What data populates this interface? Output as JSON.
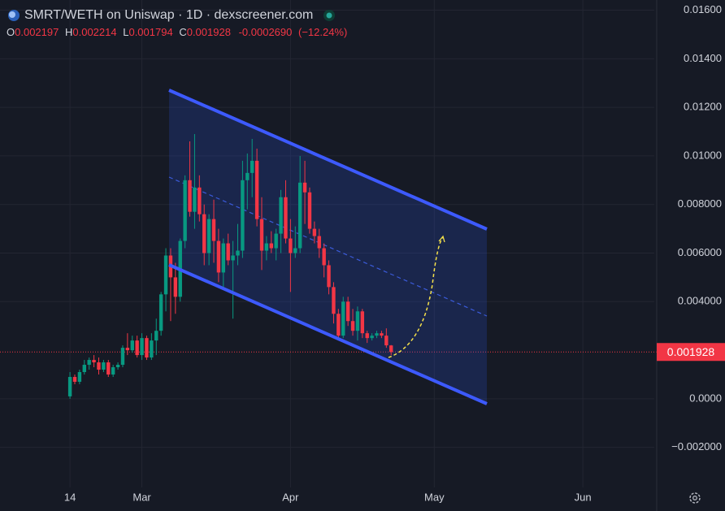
{
  "chart_data": {
    "type": "candlestick",
    "title": "SMRT/WETH on Uniswap · 1D · dexscreener.com",
    "header": {
      "o": "O",
      "h": "H",
      "l": "L",
      "c": "C",
      "change_label": "-0.0002690",
      "change_pct_label": "(−12.24%)"
    },
    "x": [
      0,
      1,
      2,
      3,
      4,
      5,
      6,
      7,
      8,
      9,
      10,
      11,
      12,
      13,
      14,
      15,
      16,
      17,
      18,
      19,
      20,
      21,
      22,
      23,
      24,
      25,
      26,
      27,
      28,
      29,
      30,
      31,
      32,
      33,
      34,
      35,
      36,
      37,
      38,
      39,
      40,
      41,
      42,
      43,
      44,
      45,
      46,
      47,
      48,
      49,
      50,
      51,
      52,
      53,
      54,
      55,
      56,
      57,
      58,
      59,
      60,
      61,
      62,
      63,
      64,
      65,
      66,
      67
    ],
    "open": [
      0.0001,
      0.0009,
      0.0007,
      0.0011,
      0.0014,
      0.0016,
      0.0015,
      0.0012,
      0.0015,
      0.001,
      0.0013,
      0.0014,
      0.0021,
      0.002,
      0.0024,
      0.0018,
      0.0025,
      0.0017,
      0.0024,
      0.0028,
      0.0043,
      0.0059,
      0.005,
      0.0042,
      0.0065,
      0.009,
      0.0077,
      0.0087,
      0.0076,
      0.006,
      0.0074,
      0.0065,
      0.0052,
      0.0064,
      0.0057,
      0.0059,
      0.0061,
      0.009,
      0.0093,
      0.0098,
      0.0074,
      0.0061,
      0.0064,
      0.0062,
      0.0068,
      0.0083,
      0.0066,
      0.006,
      0.0062,
      0.0089,
      0.0085,
      0.007,
      0.0067,
      0.0062,
      0.0055,
      0.0046,
      0.0035,
      0.0026,
      0.004,
      0.0032,
      0.0028,
      0.0036,
      0.0027,
      0.0025,
      0.0026,
      0.0027,
      0.0026,
      0.002197
    ],
    "high": [
      0.0011,
      0.001,
      0.0012,
      0.0016,
      0.0017,
      0.0018,
      0.0017,
      0.0016,
      0.0016,
      0.0014,
      0.0015,
      0.0022,
      0.0027,
      0.0026,
      0.0026,
      0.0027,
      0.0026,
      0.0027,
      0.0033,
      0.0044,
      0.0062,
      0.0062,
      0.0056,
      0.0066,
      0.0092,
      0.0106,
      0.0109,
      0.0092,
      0.008,
      0.0076,
      0.0082,
      0.007,
      0.0066,
      0.0068,
      0.0065,
      0.0072,
      0.0098,
      0.0101,
      0.0107,
      0.0103,
      0.0083,
      0.0067,
      0.0069,
      0.007,
      0.0086,
      0.009,
      0.0074,
      0.0071,
      0.01,
      0.0098,
      0.0087,
      0.0073,
      0.007,
      0.0064,
      0.0057,
      0.0048,
      0.0037,
      0.0042,
      0.0042,
      0.0037,
      0.0038,
      0.0037,
      0.0028,
      0.0027,
      0.0028,
      0.0028,
      0.0029,
      0.002214
    ],
    "low": [
      0.0,
      0.0006,
      0.0006,
      0.001,
      0.0012,
      0.0013,
      0.001,
      0.0011,
      0.0009,
      0.0009,
      0.0012,
      0.0013,
      0.0018,
      0.0019,
      0.0017,
      0.0016,
      0.0016,
      0.0016,
      0.0018,
      0.0026,
      0.0036,
      0.0032,
      0.0035,
      0.004,
      0.0062,
      0.0075,
      0.007,
      0.0073,
      0.0055,
      0.0055,
      0.0056,
      0.0048,
      0.0046,
      0.0055,
      0.0033,
      0.0055,
      0.0058,
      0.0078,
      0.0083,
      0.0071,
      0.0053,
      0.0057,
      0.006,
      0.0057,
      0.006,
      0.0064,
      0.0044,
      0.0058,
      0.006,
      0.0072,
      0.0068,
      0.0064,
      0.0058,
      0.005,
      0.0043,
      0.0031,
      0.0024,
      0.0025,
      0.003,
      0.0026,
      0.0024,
      0.0025,
      0.0023,
      0.0024,
      0.0025,
      0.0025,
      0.0021,
      0.001794
    ],
    "close": [
      0.0009,
      0.0007,
      0.0011,
      0.0014,
      0.0016,
      0.0015,
      0.0012,
      0.0015,
      0.001,
      0.0013,
      0.0014,
      0.0021,
      0.002,
      0.0024,
      0.0018,
      0.0025,
      0.0017,
      0.0024,
      0.0028,
      0.0043,
      0.0059,
      0.005,
      0.0042,
      0.0065,
      0.009,
      0.0077,
      0.0087,
      0.0076,
      0.006,
      0.0074,
      0.0065,
      0.0052,
      0.0064,
      0.0057,
      0.0059,
      0.0061,
      0.009,
      0.0093,
      0.0098,
      0.0074,
      0.0061,
      0.0064,
      0.0062,
      0.0068,
      0.0083,
      0.0066,
      0.006,
      0.0062,
      0.0089,
      0.0085,
      0.007,
      0.0067,
      0.0062,
      0.0055,
      0.0046,
      0.0035,
      0.0026,
      0.004,
      0.0032,
      0.0028,
      0.0036,
      0.0027,
      0.0025,
      0.0026,
      0.0027,
      0.0026,
      0.0022,
      0.001928
    ],
    "up_color": "#089981",
    "down_color": "#f23645",
    "xlim": [
      -14.6,
      121.9
    ],
    "xticks": [
      {
        "value": 0,
        "label": "14"
      },
      {
        "value": 15,
        "label": "Mar"
      },
      {
        "value": 46,
        "label": "Apr"
      },
      {
        "value": 76,
        "label": "May"
      },
      {
        "value": 107,
        "label": "Jun"
      }
    ],
    "ylim": [
      -0.00365,
      0.01642
    ],
    "yticks": [
      {
        "value": 0.016,
        "label": "0.01600"
      },
      {
        "value": 0.014,
        "label": "0.01400"
      },
      {
        "value": 0.012,
        "label": "0.01200"
      },
      {
        "value": 0.01,
        "label": "0.01000"
      },
      {
        "value": 0.008,
        "label": "0.008000"
      },
      {
        "value": 0.006,
        "label": "0.006000"
      },
      {
        "value": 0.004,
        "label": "0.004000"
      },
      {
        "value": 0,
        "label": "0.0000"
      },
      {
        "value": -0.002,
        "label": "−0.002000"
      }
    ],
    "grid": true
  }
}
